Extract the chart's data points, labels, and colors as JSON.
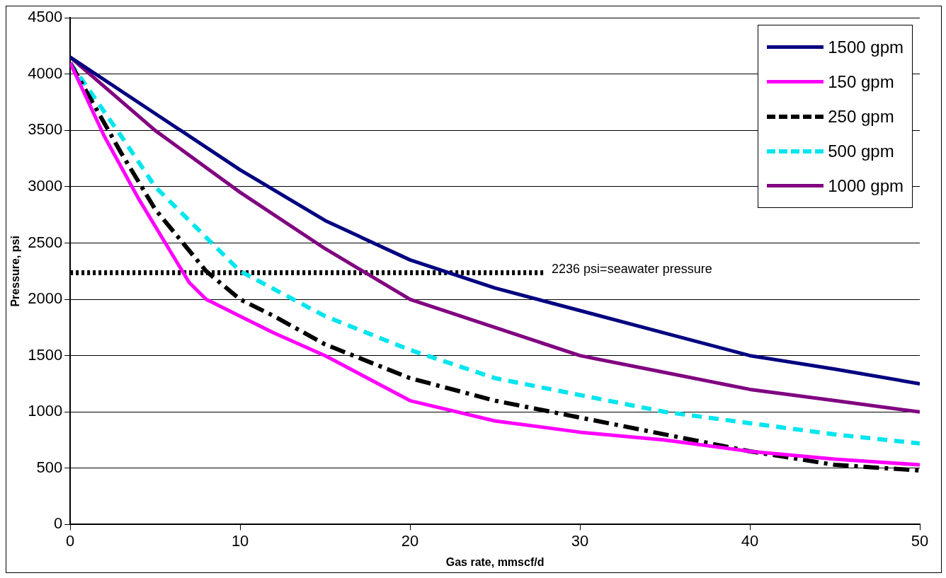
{
  "chart_data": {
    "type": "line",
    "xlabel": "Gas rate, mmscf/d",
    "ylabel": "Pressure, psi",
    "xlim": [
      0,
      50
    ],
    "xticks": [
      0,
      10,
      20,
      30,
      40,
      50
    ],
    "ylim": [
      0,
      4500
    ],
    "yticks": [
      0,
      500,
      1000,
      1500,
      2000,
      2500,
      3000,
      3500,
      4000,
      4500
    ],
    "grid": "y",
    "legend": "top right",
    "marker": "none",
    "series": [
      {
        "name": "1500 gpm",
        "color": "#000080",
        "line_style": "solid",
        "x": [
          0,
          5,
          10,
          15,
          20,
          25,
          30,
          35,
          40,
          45,
          50
        ],
        "values": [
          4150,
          3650,
          3150,
          2700,
          2350,
          2100,
          1900,
          1700,
          1500,
          1380,
          1250
        ]
      },
      {
        "name": "150 gpm",
        "color": "#ff00ff",
        "line_style": "solid",
        "x": [
          0,
          2,
          4,
          6,
          7,
          8,
          10,
          12,
          15,
          20,
          25,
          30,
          35,
          40,
          45,
          50
        ],
        "values": [
          4100,
          3450,
          2900,
          2400,
          2150,
          2000,
          1850,
          1700,
          1500,
          1100,
          920,
          820,
          750,
          650,
          580,
          530
        ]
      },
      {
        "name": "250 gpm",
        "color": "#000000",
        "line_style": "dashdot",
        "x": [
          0,
          3,
          5,
          8,
          10,
          12,
          15,
          20,
          25,
          30,
          35,
          40,
          45,
          50
        ],
        "values": [
          4100,
          3300,
          2800,
          2250,
          2000,
          1850,
          1600,
          1300,
          1100,
          950,
          800,
          650,
          530,
          480
        ]
      },
      {
        "name": "500 gpm",
        "color": "#00e5ee",
        "line_style": "dashed",
        "x": [
          0,
          3,
          5,
          8,
          10,
          15,
          20,
          25,
          30,
          35,
          40,
          45,
          50
        ],
        "values": [
          4100,
          3450,
          3000,
          2550,
          2250,
          1850,
          1550,
          1300,
          1150,
          1000,
          900,
          800,
          720
        ]
      },
      {
        "name": "1000 gpm",
        "color": "#800080",
        "line_style": "solid",
        "x": [
          0,
          5,
          10,
          15,
          20,
          25,
          30,
          35,
          40,
          45,
          50
        ],
        "values": [
          4150,
          3500,
          2950,
          2450,
          2000,
          1750,
          1500,
          1350,
          1200,
          1100,
          1000
        ]
      },
      {
        "color": "#000000",
        "line_style": "dotted",
        "x": [
          0,
          28
        ],
        "values": [
          2236,
          2236
        ]
      }
    ],
    "annotations": [
      {
        "text": "2236 psi=seawater pressure",
        "x": 28,
        "y": 2236
      }
    ]
  }
}
